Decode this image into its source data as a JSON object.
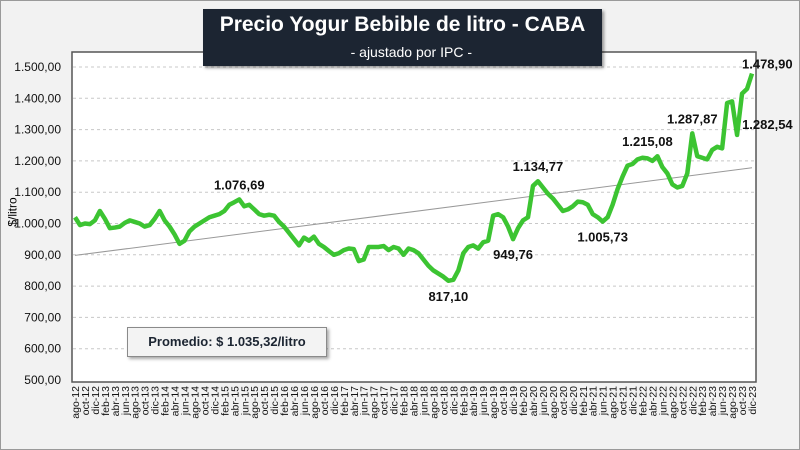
{
  "chart_data": {
    "type": "line",
    "title": "Precio Yogur Bebible de litro - CABA",
    "subtitle": "- ajustado por IPC -",
    "ylabel": "$/litro",
    "xlabel": "",
    "ylim": [
      500,
      1500
    ],
    "y_ticks": [
      "500,00",
      "600,00",
      "700,00",
      "800,00",
      "900,00",
      "1.000,00",
      "1.100,00",
      "1.200,00",
      "1.300,00",
      "1.400,00",
      "1.500,00"
    ],
    "x_tick_labels": [
      "ago-12",
      "oct-12",
      "dic-12",
      "feb-13",
      "abr-13",
      "jun-13",
      "ago-13",
      "oct-13",
      "dic-13",
      "feb-14",
      "abr-14",
      "jun-14",
      "ago-14",
      "oct-14",
      "dic-14",
      "feb-15",
      "abr-15",
      "jun-15",
      "ago-15",
      "oct-15",
      "dic-15",
      "feb-16",
      "abr-16",
      "jun-16",
      "ago-16",
      "oct-16",
      "dic-16",
      "feb-17",
      "abr-17",
      "jun-17",
      "ago-17",
      "oct-17",
      "dic-17",
      "feb-18",
      "abr-18",
      "jun-18",
      "ago-18",
      "oct-18",
      "dic-18",
      "feb-19",
      "abr-19",
      "jun-19",
      "ago-19",
      "oct-19",
      "dic-19",
      "feb-20",
      "abr-20",
      "jun-20",
      "ago-20",
      "oct-20",
      "dic-20",
      "feb-21",
      "abr-21",
      "jun-21",
      "ago-21",
      "oct-21",
      "dic-21",
      "feb-22",
      "abr-22",
      "jun-22",
      "ago-22",
      "oct-22",
      "dic-22",
      "feb-23",
      "abr-23",
      "jun-23",
      "ago-23",
      "oct-23",
      "dic-23"
    ],
    "grid": true,
    "series": [
      {
        "name": "Precio",
        "color": "#3cc432",
        "values": [
          1020,
          995,
          1000,
          998,
          1010,
          1040,
          1015,
          985,
          987,
          990,
          1002,
          1010,
          1005,
          1000,
          990,
          995,
          1015,
          1040,
          1010,
          990,
          965,
          935,
          945,
          975,
          990,
          1000,
          1010,
          1020,
          1025,
          1030,
          1040,
          1060,
          1068,
          1077,
          1055,
          1060,
          1045,
          1030,
          1025,
          1028,
          1025,
          1005,
          990,
          970,
          950,
          930,
          955,
          945,
          958,
          935,
          925,
          912,
          900,
          905,
          915,
          920,
          918,
          880,
          885,
          925,
          925,
          925,
          928,
          915,
          925,
          920,
          900,
          920,
          915,
          905,
          885,
          865,
          850,
          840,
          830,
          817,
          820,
          850,
          905,
          925,
          930,
          920,
          940,
          945,
          1025,
          1030,
          1020,
          990,
          950,
          985,
          1010,
          1020,
          1120,
          1135,
          1115,
          1095,
          1080,
          1060,
          1040,
          1045,
          1055,
          1070,
          1068,
          1060,
          1030,
          1020,
          1006,
          1020,
          1060,
          1110,
          1150,
          1185,
          1190,
          1205,
          1210,
          1208,
          1200,
          1215,
          1180,
          1160,
          1125,
          1115,
          1120,
          1160,
          1288,
          1215,
          1210,
          1205,
          1235,
          1245,
          1240,
          1385,
          1390,
          1283,
          1415,
          1430,
          1479
        ]
      }
    ],
    "trendline": {
      "start": 898,
      "end": 1178,
      "color": "#999999"
    },
    "annotations": [
      {
        "index": 33,
        "text": "1.076,69",
        "side": "above"
      },
      {
        "index": 75,
        "text": "817,10",
        "side": "below"
      },
      {
        "index": 88,
        "text": "949,76",
        "side": "below"
      },
      {
        "index": 93,
        "text": "1.134,77",
        "side": "above"
      },
      {
        "index": 106,
        "text": "1.005,73",
        "side": "below"
      },
      {
        "index": 117,
        "text": "1.215,08",
        "side": "above-left"
      },
      {
        "index": 124,
        "text": "1.287,87",
        "side": "above"
      },
      {
        "index": 133,
        "text": "1.282,54",
        "side": "right"
      },
      {
        "index": 136,
        "text": "1.478,90",
        "side": "above"
      }
    ],
    "average_box": "Promedio: $ 1.035,32/litro"
  }
}
